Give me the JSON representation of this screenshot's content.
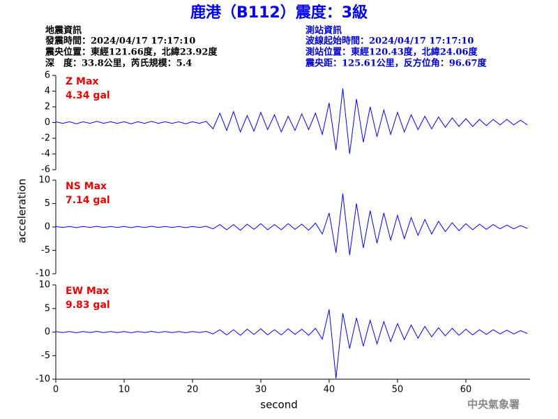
{
  "header": {
    "title": "鹿港（B112）震度：3級",
    "left": [
      "地震資訊",
      "發震時間：2024/04/17 17:17:10",
      "震央位置：東經121.66度，北緯23.92度",
      "深　度：33.8公里，芮氏規模：5.4"
    ],
    "right": [
      "測站資訊",
      "波線起始時間：2024/04/17 17:17:10",
      "測站位置：東經120.43度，北緯24.06度",
      "震央距：125.61公里，反方位角：96.67度"
    ],
    "y_label": "acceleration",
    "x_label": "second",
    "credit": "中央氣象署"
  },
  "chart_data": [
    {
      "type": "line",
      "label": "Z Max",
      "max_label": "4.34 gal",
      "x": [
        0,
        1,
        2,
        3,
        4,
        5,
        6,
        7,
        8,
        9,
        10,
        11,
        12,
        13,
        14,
        15,
        16,
        17,
        18,
        19,
        20,
        21,
        22,
        23,
        24,
        25,
        26,
        27,
        28,
        29,
        30,
        31,
        32,
        33,
        34,
        35,
        36,
        37,
        38,
        39,
        40,
        41,
        42,
        43,
        44,
        45,
        46,
        47,
        48,
        49,
        50,
        51,
        52,
        53,
        54,
        55,
        56,
        57,
        58,
        59,
        60,
        61,
        62,
        63,
        64,
        65,
        66,
        67,
        68,
        69
      ],
      "series": [
        {
          "color": "#0000ff",
          "values": [
            0.1,
            -0.1,
            0.1,
            -0.15,
            0.1,
            -0.1,
            0.15,
            -0.1,
            0.1,
            -0.1,
            0.1,
            -0.15,
            0.1,
            -0.1,
            0.15,
            -0.1,
            0.1,
            -0.1,
            0.1,
            -0.15,
            0.1,
            -0.1,
            0.15,
            -0.8,
            1.2,
            -1.0,
            1.4,
            -1.2,
            0.9,
            -1.1,
            1.3,
            -0.9,
            1.0,
            -1.2,
            0.8,
            -1.0,
            1.1,
            -0.9,
            1.2,
            -1.5,
            2.5,
            -3.5,
            4.34,
            -4.0,
            3.0,
            -2.5,
            2.0,
            -1.8,
            1.6,
            -1.5,
            1.3,
            -1.2,
            1.0,
            -0.9,
            0.8,
            -0.8,
            0.7,
            -0.6,
            0.6,
            -0.5,
            0.5,
            -0.5,
            0.4,
            -0.4,
            0.4,
            -0.3,
            0.4,
            -0.3,
            0.3,
            -0.3
          ]
        }
      ],
      "xlim": [
        0,
        69.4
      ],
      "ylim": [
        -6,
        6
      ],
      "yticks": [
        6,
        4,
        2,
        0,
        -2,
        -4,
        -6
      ]
    },
    {
      "type": "line",
      "label": "NS Max",
      "max_label": "7.14 gal",
      "x": [
        0,
        1,
        2,
        3,
        4,
        5,
        6,
        7,
        8,
        9,
        10,
        11,
        12,
        13,
        14,
        15,
        16,
        17,
        18,
        19,
        20,
        21,
        22,
        23,
        24,
        25,
        26,
        27,
        28,
        29,
        30,
        31,
        32,
        33,
        34,
        35,
        36,
        37,
        38,
        39,
        40,
        41,
        42,
        43,
        44,
        45,
        46,
        47,
        48,
        49,
        50,
        51,
        52,
        53,
        54,
        55,
        56,
        57,
        58,
        59,
        60,
        61,
        62,
        63,
        64,
        65,
        66,
        67,
        68,
        69
      ],
      "series": [
        {
          "color": "#0000ff",
          "values": [
            0.1,
            -0.1,
            0.1,
            -0.15,
            0.1,
            -0.1,
            0.15,
            -0.1,
            0.1,
            -0.1,
            0.1,
            -0.15,
            0.1,
            -0.1,
            0.15,
            -0.1,
            0.1,
            -0.1,
            0.1,
            -0.15,
            0.1,
            -0.1,
            0.15,
            -0.4,
            0.5,
            -0.6,
            0.5,
            -0.7,
            0.6,
            -0.5,
            0.7,
            -0.6,
            0.5,
            -0.6,
            0.7,
            -0.5,
            0.6,
            -0.7,
            0.8,
            -1.5,
            3.0,
            -5.5,
            7.14,
            -6.0,
            5.0,
            -4.5,
            3.5,
            -3.5,
            3.0,
            -2.8,
            2.5,
            -2.5,
            2.0,
            -1.8,
            1.6,
            -1.5,
            1.2,
            -1.0,
            0.9,
            -0.8,
            0.7,
            -0.6,
            0.6,
            -0.5,
            0.5,
            -0.4,
            0.4,
            -0.4,
            0.3,
            -0.3
          ]
        }
      ],
      "xlim": [
        0,
        69.4
      ],
      "ylim": [
        -10,
        10
      ],
      "yticks": [
        10,
        5,
        0,
        -5,
        -10
      ]
    },
    {
      "type": "line",
      "label": "EW Max",
      "max_label": "9.83 gal",
      "x": [
        0,
        1,
        2,
        3,
        4,
        5,
        6,
        7,
        8,
        9,
        10,
        11,
        12,
        13,
        14,
        15,
        16,
        17,
        18,
        19,
        20,
        21,
        22,
        23,
        24,
        25,
        26,
        27,
        28,
        29,
        30,
        31,
        32,
        33,
        34,
        35,
        36,
        37,
        38,
        39,
        40,
        41,
        42,
        43,
        44,
        45,
        46,
        47,
        48,
        49,
        50,
        51,
        52,
        53,
        54,
        55,
        56,
        57,
        58,
        59,
        60,
        61,
        62,
        63,
        64,
        65,
        66,
        67,
        68,
        69
      ],
      "series": [
        {
          "color": "#0000ff",
          "values": [
            0.1,
            -0.1,
            0.1,
            -0.15,
            0.1,
            -0.1,
            0.15,
            -0.1,
            0.1,
            -0.1,
            0.1,
            -0.15,
            0.1,
            -0.1,
            0.15,
            -0.1,
            0.1,
            -0.1,
            0.1,
            -0.15,
            0.1,
            -0.1,
            0.15,
            -0.4,
            0.5,
            -0.6,
            0.5,
            -0.7,
            0.6,
            -0.5,
            0.7,
            -0.6,
            0.5,
            -0.6,
            0.7,
            -0.5,
            0.6,
            -0.7,
            0.8,
            -1.5,
            4.8,
            -9.83,
            4.0,
            -3.5,
            3.0,
            -3.0,
            2.5,
            -2.5,
            2.2,
            -2.0,
            1.8,
            -1.6,
            1.5,
            -1.3,
            1.2,
            -1.0,
            0.9,
            -0.8,
            0.8,
            -0.7,
            0.6,
            -0.6,
            0.5,
            -0.5,
            0.5,
            -0.4,
            0.4,
            -0.4,
            0.3,
            -0.3
          ]
        }
      ],
      "xlim": [
        0,
        69.4
      ],
      "ylim": [
        -10,
        10
      ],
      "yticks": [
        10,
        5,
        0,
        -5,
        -10
      ],
      "xticks": [
        0,
        10,
        20,
        30,
        40,
        50,
        60
      ]
    }
  ]
}
